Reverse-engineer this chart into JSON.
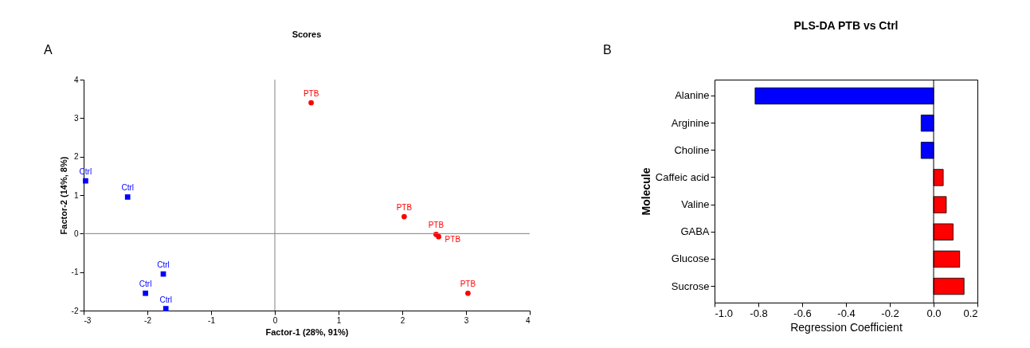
{
  "chart_data": [
    {
      "type": "scatter",
      "title": "Scores",
      "xlabel": "Factor-1 (28%, 91%)",
      "ylabel": "Factor-2 (14%, 8%)",
      "annotations": [
        "A"
      ],
      "grid": false,
      "xlim": [
        -3,
        4
      ],
      "ylim": [
        -2,
        4
      ],
      "xticks": [
        -3,
        -2,
        -1,
        0,
        1,
        2,
        3,
        4
      ],
      "yticks": [
        -2,
        -1,
        0,
        1,
        2,
        3,
        4
      ],
      "ref_lines": [
        {
          "axis": "x",
          "value": 0,
          "color": "#808080"
        },
        {
          "axis": "y",
          "value": 0,
          "color": "#808080"
        }
      ],
      "series": [
        {
          "name": "Ctrl",
          "color": "#0000ff",
          "marker": "square",
          "x": [
            -2.97,
            -2.31,
            -1.75,
            -2.03,
            -1.71
          ],
          "values": [
            1.37,
            0.95,
            -1.05,
            -1.55,
            -1.95
          ]
        },
        {
          "name": "PTB",
          "color": "#ff0000",
          "marker": "circle",
          "x": [
            0.57,
            2.03,
            2.53,
            2.57,
            3.03
          ],
          "values": [
            3.4,
            0.44,
            -0.02,
            -0.08,
            -1.55
          ]
        }
      ]
    },
    {
      "type": "bar",
      "orientation": "horizontal",
      "title": "PLS-DA PTB vs Ctrl",
      "xlabel": "Regression Coefficient",
      "ylabel": "Molecule",
      "annotations": [
        "B"
      ],
      "grid": false,
      "categories": [
        "Alanine",
        "Arginine",
        "Choline",
        "Caffeic acid",
        "Valine",
        "GABA",
        "Glucose",
        "Sucrose"
      ],
      "values": [
        -0.815,
        -0.057,
        -0.057,
        0.044,
        0.058,
        0.089,
        0.119,
        0.139
      ],
      "colors": [
        "#0000ff",
        "#0000ff",
        "#0000ff",
        "#ff0000",
        "#ff0000",
        "#ff0000",
        "#ff0000",
        "#ff0000"
      ],
      "xlim": [
        -1.0,
        0.2
      ],
      "xticks": [
        {
          "value": -1.0,
          "label": "-1.0"
        },
        {
          "value": -0.8,
          "label": "-0.8"
        },
        {
          "value": -0.6,
          "label": "-0.6"
        },
        {
          "value": -0.4,
          "label": "-0.4"
        },
        {
          "value": -0.2,
          "label": "-0.2"
        },
        {
          "value": 0.0,
          "label": "0.0"
        },
        {
          "value": 0.2,
          "label": "0.2"
        }
      ],
      "ref_lines": [
        {
          "axis": "x",
          "value": 0,
          "color": "#000000"
        }
      ]
    }
  ]
}
